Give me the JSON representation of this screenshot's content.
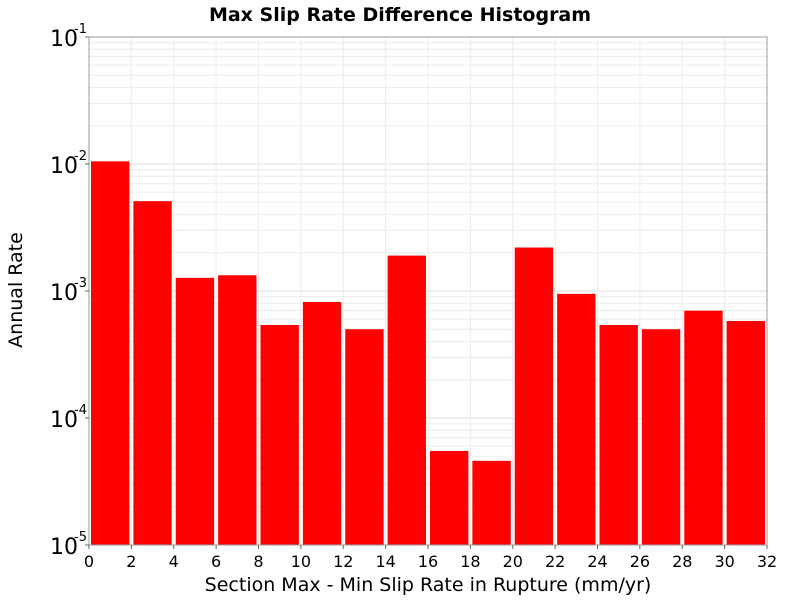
{
  "chart_data": {
    "type": "bar",
    "title": "Max Slip Rate Difference Histogram",
    "xlabel": "Section Max - Min Slip Rate in Rupture (mm/yr)",
    "ylabel": "Annual Rate",
    "y_scale": "log",
    "xlim": [
      0,
      32
    ],
    "ylim": [
      1e-05,
      0.1
    ],
    "grid": true,
    "bar_color": "#ff0000",
    "x_ticks": [
      "0",
      "2",
      "4",
      "6",
      "8",
      "10",
      "12",
      "14",
      "16",
      "18",
      "20",
      "22",
      "24",
      "26",
      "28",
      "30",
      "32"
    ],
    "y_ticks": [
      {
        "base": "10",
        "exp": "-5"
      },
      {
        "base": "10",
        "exp": "-4"
      },
      {
        "base": "10",
        "exp": "-3"
      },
      {
        "base": "10",
        "exp": "-2"
      },
      {
        "base": "10",
        "exp": "-1"
      }
    ],
    "bin_width": 2,
    "bins": [
      {
        "x": 1,
        "value": 0.0105
      },
      {
        "x": 3,
        "value": 0.0051
      },
      {
        "x": 5,
        "value": 0.00127
      },
      {
        "x": 7,
        "value": 0.00133
      },
      {
        "x": 9,
        "value": 0.00054
      },
      {
        "x": 11,
        "value": 0.00082
      },
      {
        "x": 13,
        "value": 0.0005
      },
      {
        "x": 15,
        "value": 0.0019
      },
      {
        "x": 17,
        "value": 5.5e-05
      },
      {
        "x": 19,
        "value": 4.6e-05
      },
      {
        "x": 21,
        "value": 0.0022
      },
      {
        "x": 23,
        "value": 0.00095
      },
      {
        "x": 25,
        "value": 0.00054
      },
      {
        "x": 27,
        "value": 0.0005
      },
      {
        "x": 29,
        "value": 0.0007
      },
      {
        "x": 31,
        "value": 0.00058
      }
    ]
  }
}
